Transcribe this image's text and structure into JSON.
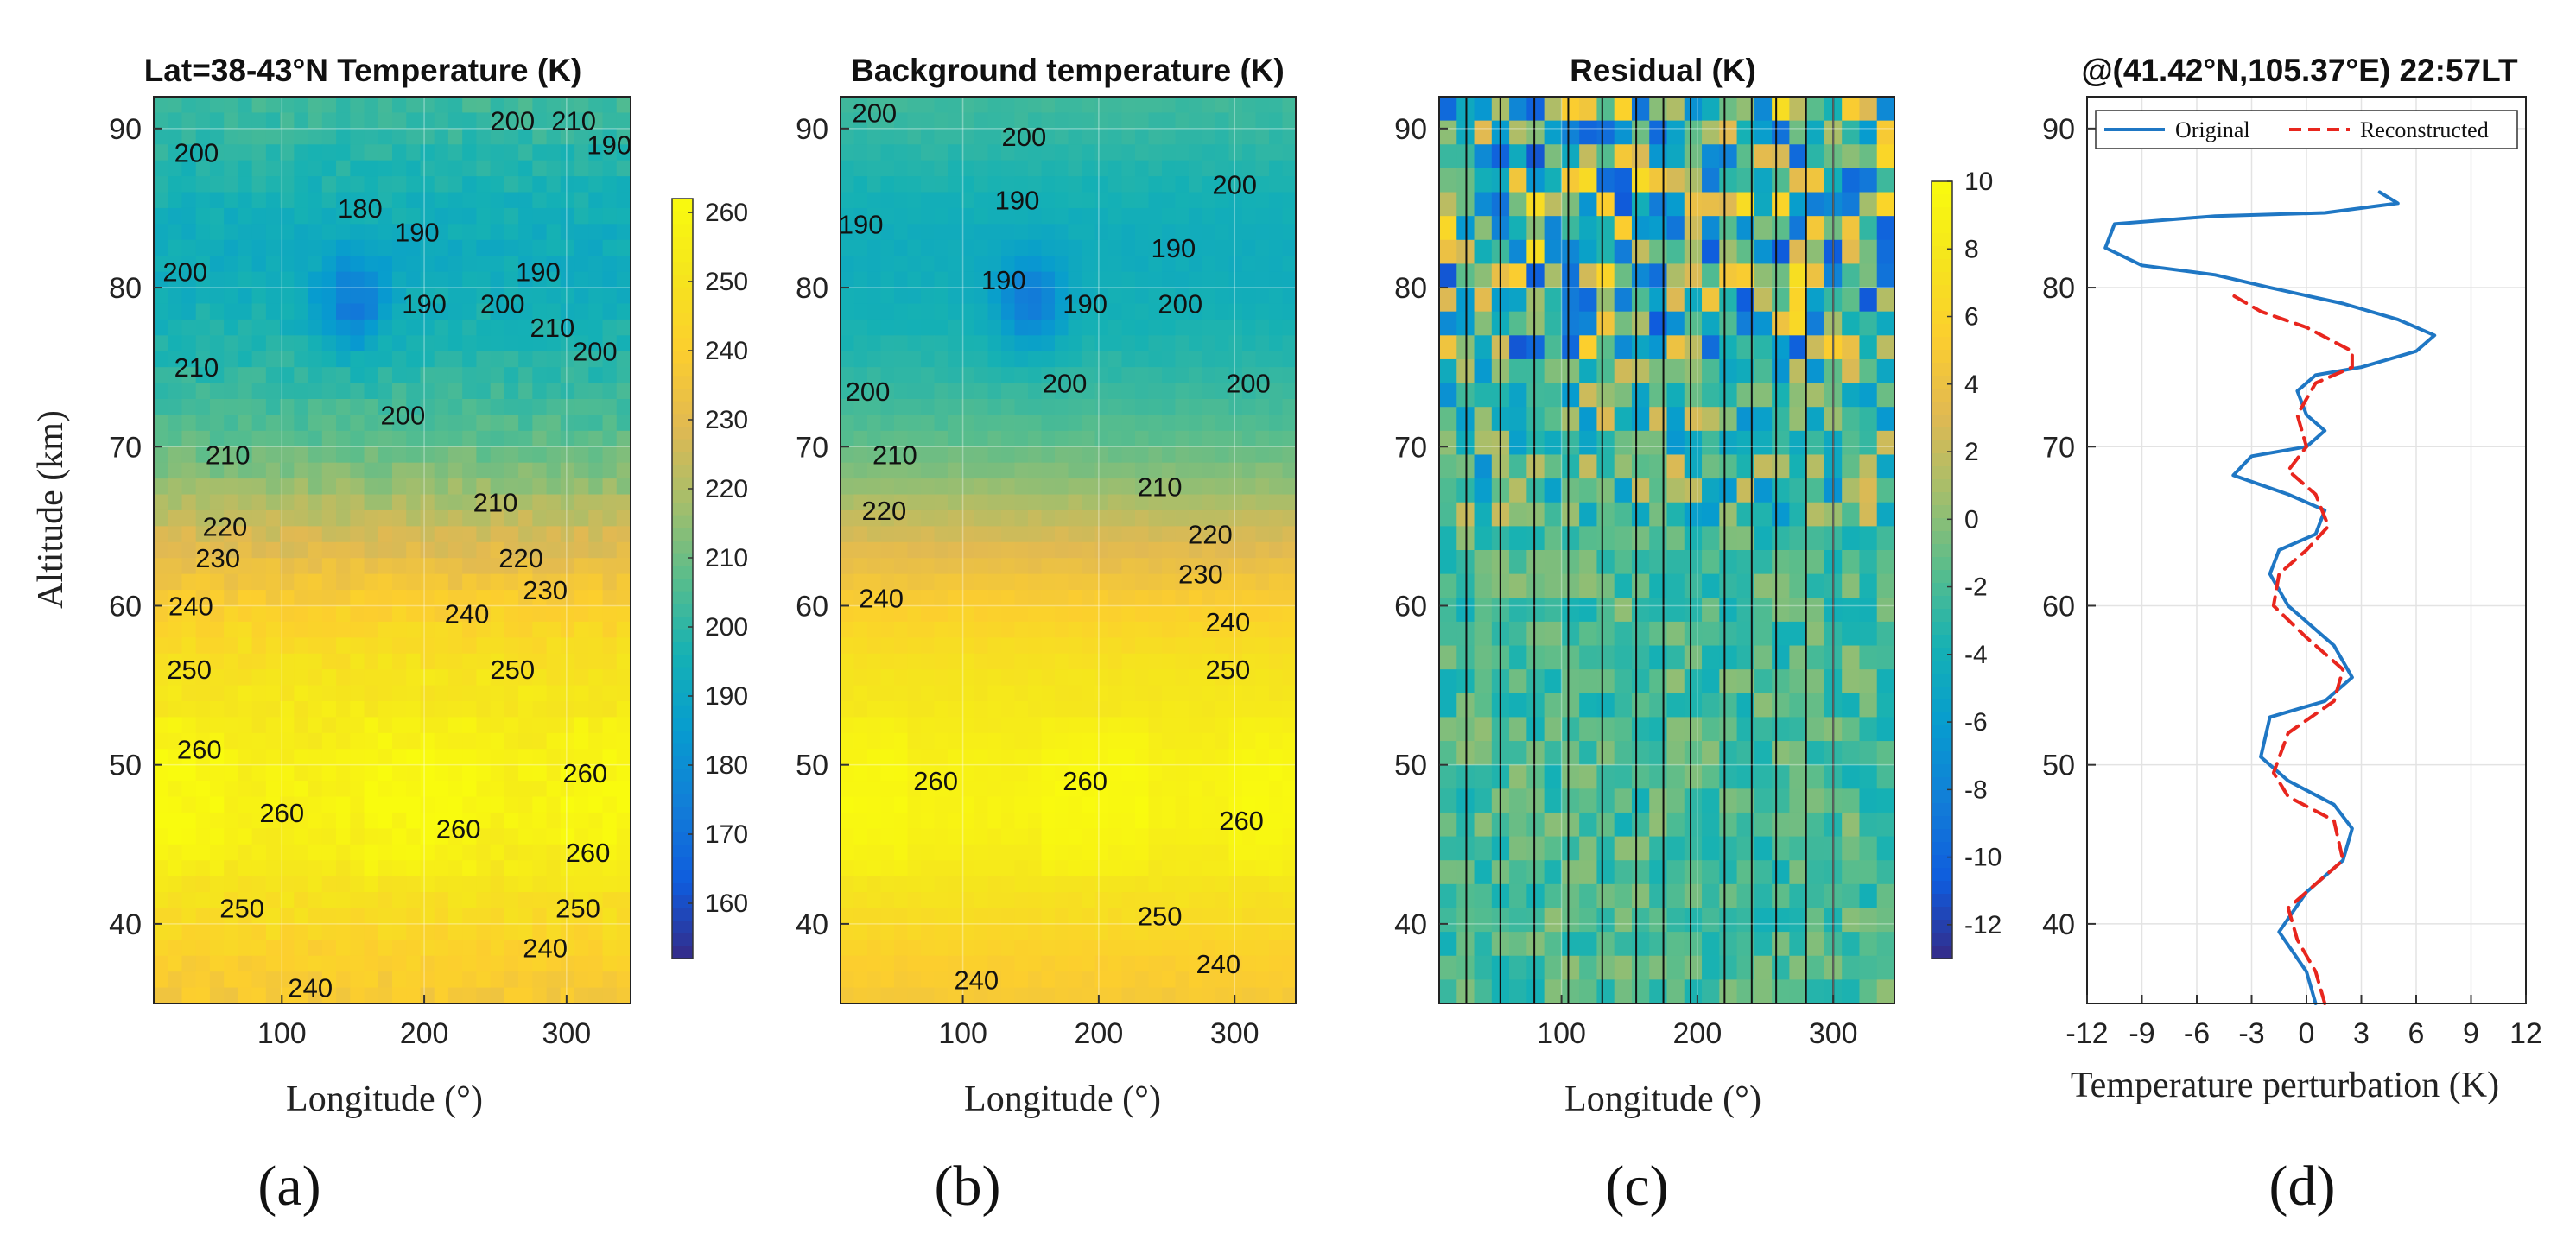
{
  "chart_data": [
    {
      "panel": "(a)",
      "type": "heatmap",
      "title": "Lat=38-43°N  Temperature (K)",
      "xlabel": "Longitude (°)",
      "ylabel": "Altitude (km)",
      "xlim": [
        10,
        345
      ],
      "ylim": [
        35,
        92
      ],
      "xticks": [
        "100",
        "200",
        "300"
      ],
      "xtick_values": [
        100,
        200,
        300
      ],
      "yticks": [
        "40",
        "50",
        "60",
        "70",
        "80",
        "90"
      ],
      "ytick_values": [
        40,
        50,
        60,
        70,
        80,
        90
      ],
      "colorbar": {
        "ticks": [
          "160",
          "170",
          "180",
          "190",
          "200",
          "210",
          "220",
          "230",
          "240",
          "250",
          "260"
        ],
        "values": [
          160,
          170,
          180,
          190,
          200,
          210,
          220,
          230,
          240,
          250,
          260
        ],
        "min": 152,
        "max": 262,
        "colormap": "parula"
      },
      "profile": [
        [
          35,
          237
        ],
        [
          38,
          241
        ],
        [
          41,
          248
        ],
        [
          44,
          254
        ],
        [
          47,
          258
        ],
        [
          50,
          257
        ],
        [
          53,
          253
        ],
        [
          56,
          250
        ],
        [
          59,
          243
        ],
        [
          62,
          234
        ],
        [
          65,
          225
        ],
        [
          68,
          214
        ],
        [
          71,
          206
        ],
        [
          74,
          201
        ],
        [
          77,
          197
        ],
        [
          80,
          194
        ],
        [
          83,
          193
        ],
        [
          86,
          196
        ],
        [
          89,
          200
        ],
        [
          92,
          203
        ]
      ],
      "contour_labels": [
        {
          "text": "200",
          "lon": 40,
          "alt": 88.5
        },
        {
          "text": "200",
          "lon": 262,
          "alt": 90.5
        },
        {
          "text": "210",
          "lon": 305,
          "alt": 90.5
        },
        {
          "text": "190",
          "lon": 330,
          "alt": 89
        },
        {
          "text": "180",
          "lon": 155,
          "alt": 85
        },
        {
          "text": "190",
          "lon": 195,
          "alt": 83.5
        },
        {
          "text": "190",
          "lon": 280,
          "alt": 81
        },
        {
          "text": "200",
          "lon": 32,
          "alt": 81
        },
        {
          "text": "190",
          "lon": 200,
          "alt": 79
        },
        {
          "text": "200",
          "lon": 255,
          "alt": 79
        },
        {
          "text": "210",
          "lon": 290,
          "alt": 77.5
        },
        {
          "text": "200",
          "lon": 320,
          "alt": 76
        },
        {
          "text": "210",
          "lon": 40,
          "alt": 75
        },
        {
          "text": "200",
          "lon": 185,
          "alt": 72
        },
        {
          "text": "210",
          "lon": 62,
          "alt": 69.5
        },
        {
          "text": "210",
          "lon": 250,
          "alt": 66.5
        },
        {
          "text": "220",
          "lon": 60,
          "alt": 65
        },
        {
          "text": "220",
          "lon": 268,
          "alt": 63
        },
        {
          "text": "230",
          "lon": 55,
          "alt": 63
        },
        {
          "text": "230",
          "lon": 285,
          "alt": 61
        },
        {
          "text": "240",
          "lon": 36,
          "alt": 60
        },
        {
          "text": "240",
          "lon": 230,
          "alt": 59.5
        },
        {
          "text": "250",
          "lon": 35,
          "alt": 56
        },
        {
          "text": "250",
          "lon": 262,
          "alt": 56
        },
        {
          "text": "260",
          "lon": 42,
          "alt": 51
        },
        {
          "text": "260",
          "lon": 313,
          "alt": 49.5
        },
        {
          "text": "260",
          "lon": 100,
          "alt": 47
        },
        {
          "text": "260",
          "lon": 224,
          "alt": 46
        },
        {
          "text": "260",
          "lon": 315,
          "alt": 44.5
        },
        {
          "text": "250",
          "lon": 72,
          "alt": 41
        },
        {
          "text": "250",
          "lon": 308,
          "alt": 41
        },
        {
          "text": "240",
          "lon": 120,
          "alt": 36
        },
        {
          "text": "240",
          "lon": 285,
          "alt": 38.5
        }
      ]
    },
    {
      "panel": "(b)",
      "type": "heatmap",
      "title": "Background temperature  (K)",
      "xlabel": "Longitude (°)",
      "ylabel": "",
      "xlim": [
        10,
        345
      ],
      "ylim": [
        35,
        92
      ],
      "xticks": [
        "100",
        "200",
        "300"
      ],
      "xtick_values": [
        100,
        200,
        300
      ],
      "yticks": [
        "40",
        "50",
        "60",
        "70",
        "80",
        "90"
      ],
      "ytick_values": [
        40,
        50,
        60,
        70,
        80,
        90
      ],
      "profile": [
        [
          35,
          237
        ],
        [
          38,
          241
        ],
        [
          41,
          248
        ],
        [
          44,
          254
        ],
        [
          47,
          258
        ],
        [
          50,
          257
        ],
        [
          53,
          253
        ],
        [
          56,
          250
        ],
        [
          59,
          243
        ],
        [
          62,
          234
        ],
        [
          65,
          225
        ],
        [
          68,
          214
        ],
        [
          71,
          206
        ],
        [
          74,
          201
        ],
        [
          77,
          197
        ],
        [
          80,
          194
        ],
        [
          83,
          193
        ],
        [
          86,
          196
        ],
        [
          89,
          200
        ],
        [
          92,
          203
        ]
      ],
      "contour_labels": [
        {
          "text": "200",
          "lon": 35,
          "alt": 91
        },
        {
          "text": "200",
          "lon": 145,
          "alt": 89.5
        },
        {
          "text": "190",
          "lon": 140,
          "alt": 85.5
        },
        {
          "text": "200",
          "lon": 300,
          "alt": 86.5
        },
        {
          "text": "190",
          "lon": 25,
          "alt": 84
        },
        {
          "text": "190",
          "lon": 255,
          "alt": 82.5
        },
        {
          "text": "190",
          "lon": 130,
          "alt": 80.5
        },
        {
          "text": "190",
          "lon": 190,
          "alt": 79
        },
        {
          "text": "200",
          "lon": 260,
          "alt": 79
        },
        {
          "text": "200",
          "lon": 30,
          "alt": 73.5
        },
        {
          "text": "200",
          "lon": 175,
          "alt": 74
        },
        {
          "text": "200",
          "lon": 310,
          "alt": 74
        },
        {
          "text": "210",
          "lon": 50,
          "alt": 69.5
        },
        {
          "text": "210",
          "lon": 245,
          "alt": 67.5
        },
        {
          "text": "220",
          "lon": 42,
          "alt": 66
        },
        {
          "text": "220",
          "lon": 282,
          "alt": 64.5
        },
        {
          "text": "230",
          "lon": 275,
          "alt": 62
        },
        {
          "text": "240",
          "lon": 40,
          "alt": 60.5
        },
        {
          "text": "240",
          "lon": 295,
          "alt": 59
        },
        {
          "text": "250",
          "lon": 295,
          "alt": 56
        },
        {
          "text": "260",
          "lon": 80,
          "alt": 49
        },
        {
          "text": "260",
          "lon": 190,
          "alt": 49
        },
        {
          "text": "260",
          "lon": 305,
          "alt": 46.5
        },
        {
          "text": "250",
          "lon": 245,
          "alt": 40.5
        },
        {
          "text": "240",
          "lon": 110,
          "alt": 36.5
        },
        {
          "text": "240",
          "lon": 288,
          "alt": 37.5
        }
      ]
    },
    {
      "panel": "(c)",
      "type": "heatmap",
      "title": "Residual   (K)",
      "xlabel": "Longitude (°)",
      "ylabel": "",
      "xlim": [
        10,
        345
      ],
      "ylim": [
        35,
        92
      ],
      "xticks": [
        "100",
        "200",
        "300"
      ],
      "xtick_values": [
        100,
        200,
        300
      ],
      "yticks": [
        "40",
        "50",
        "60",
        "70",
        "80",
        "90"
      ],
      "ytick_values": [
        40,
        50,
        60,
        70,
        80,
        90
      ],
      "colorbar": {
        "ticks": [
          "-12",
          "-10",
          "-8",
          "-6",
          "-4",
          "-2",
          "0",
          "2",
          "4",
          "6",
          "8",
          "10"
        ],
        "values": [
          -12,
          -10,
          -8,
          -6,
          -4,
          -2,
          0,
          2,
          4,
          6,
          8,
          10
        ],
        "min": -13,
        "max": 10,
        "colormap": "parula"
      },
      "vertical_lines_lon": [
        30,
        55,
        80,
        105,
        130,
        155,
        175,
        195,
        220,
        240,
        258,
        280,
        300
      ]
    },
    {
      "panel": "(d)",
      "type": "line",
      "title": "@(41.42°N,105.37°E)  22:57LT",
      "xlabel": "Temperature perturbation (K)",
      "ylabel": "",
      "xlim": [
        -12,
        12
      ],
      "ylim": [
        35,
        92
      ],
      "xticks": [
        "-12",
        "-9",
        "-6",
        "-3",
        "0",
        "3",
        "6",
        "9",
        "12"
      ],
      "xtick_values": [
        -12,
        -9,
        -6,
        -3,
        0,
        3,
        6,
        9,
        12
      ],
      "yticks": [
        "40",
        "50",
        "60",
        "70",
        "80",
        "90"
      ],
      "ytick_values": [
        40,
        50,
        60,
        70,
        80,
        90
      ],
      "grid": true,
      "legend_position": "top",
      "series": [
        {
          "name": "Original",
          "color": "#1f77c4",
          "style": "solid",
          "points": [
            [
              0.5,
              35
            ],
            [
              0,
              37
            ],
            [
              -1.5,
              39.5
            ],
            [
              0,
              42
            ],
            [
              2,
              44
            ],
            [
              2.5,
              46
            ],
            [
              1.5,
              47.5
            ],
            [
              -1,
              49
            ],
            [
              -2.5,
              50.5
            ],
            [
              -2,
              53
            ],
            [
              1,
              54
            ],
            [
              2.5,
              55.5
            ],
            [
              1.5,
              57.5
            ],
            [
              -1,
              60
            ],
            [
              -2,
              62
            ],
            [
              -1.5,
              63.5
            ],
            [
              0.5,
              64.5
            ],
            [
              1,
              66
            ],
            [
              -1,
              67
            ],
            [
              -3,
              67.8
            ],
            [
              -4,
              68.2
            ],
            [
              -3,
              69.4
            ],
            [
              0,
              70
            ],
            [
              1,
              71
            ],
            [
              0,
              72
            ],
            [
              -0.5,
              73.5
            ],
            [
              0.5,
              74.5
            ],
            [
              3,
              75
            ],
            [
              6,
              76
            ],
            [
              7,
              77
            ],
            [
              5,
              78
            ],
            [
              2,
              79
            ],
            [
              -2,
              80
            ],
            [
              -5,
              80.8
            ],
            [
              -9,
              81.4
            ],
            [
              -11,
              82.5
            ],
            [
              -10.5,
              84
            ],
            [
              -5,
              84.5
            ],
            [
              1,
              84.7
            ],
            [
              5,
              85.3
            ],
            [
              4,
              86
            ]
          ]
        },
        {
          "name": "Reconstructed",
          "color": "#e8261e",
          "style": "dashed",
          "points": [
            [
              1,
              35
            ],
            [
              0.5,
              37
            ],
            [
              -0.5,
              39
            ],
            [
              -1,
              41
            ],
            [
              0.5,
              42.5
            ],
            [
              2,
              44
            ],
            [
              1.5,
              46.5
            ],
            [
              -1,
              48
            ],
            [
              -1.8,
              49.5
            ],
            [
              -1,
              52
            ],
            [
              1.5,
              54
            ],
            [
              2,
              56
            ],
            [
              0,
              58
            ],
            [
              -1.8,
              60
            ],
            [
              -1.5,
              62
            ],
            [
              0,
              63.5
            ],
            [
              1.2,
              65
            ],
            [
              0.5,
              67
            ],
            [
              -1,
              68.5
            ],
            [
              0,
              70
            ],
            [
              -0.5,
              72
            ],
            [
              0.5,
              74
            ],
            [
              2.5,
              75
            ],
            [
              2.5,
              76
            ],
            [
              0,
              77.5
            ],
            [
              -2.5,
              78.5
            ],
            [
              -4,
              79.5
            ]
          ]
        }
      ]
    }
  ],
  "panel_labels": [
    "(a)",
    "(b)",
    "(c)",
    "(d)"
  ]
}
